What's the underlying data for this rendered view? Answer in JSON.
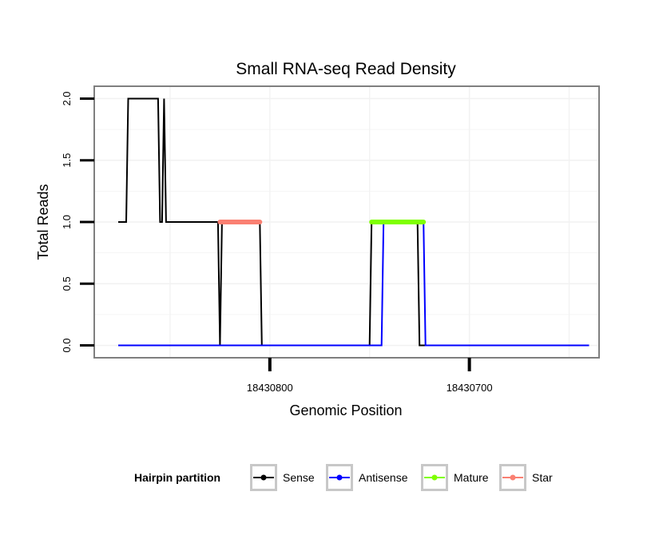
{
  "chart_data": {
    "type": "line",
    "title": "Small RNA-seq Read Density",
    "xlabel": "Genomic Position",
    "ylabel": "Total Reads",
    "x_reversed": true,
    "xlim": [
      18430888,
      18430635
    ],
    "ylim": [
      -0.1,
      2.1
    ],
    "x_ticks": [
      18430800,
      18430700
    ],
    "x_tick_labels": [
      "18430800",
      "18430700"
    ],
    "y_ticks": [
      0,
      0.5,
      1,
      1.5,
      2
    ],
    "y_tick_labels": [
      "0.0",
      "0.5",
      "1.0",
      "1.5",
      "2.0"
    ],
    "grid": true,
    "legend": {
      "title": "Hairpin partition",
      "position": "bottom",
      "entries": [
        {
          "label": "Sense",
          "color": "#000000"
        },
        {
          "label": "Antisense",
          "color": "#0000ff"
        },
        {
          "label": "Mature",
          "color": "#7fff00"
        },
        {
          "label": "Star",
          "color": "#fa8072"
        }
      ]
    },
    "series": [
      {
        "name": "Sense",
        "color": "#000000",
        "x": [
          18430876,
          18430872,
          18430871,
          18430856,
          18430855,
          18430854,
          18430853,
          18430852,
          18430826,
          18430825,
          18430824,
          18430805,
          18430804,
          18430750,
          18430749,
          18430726,
          18430725,
          18430640
        ],
        "y": [
          1,
          1,
          2,
          2,
          1,
          1,
          2,
          1,
          1,
          0,
          1,
          1,
          0,
          0,
          1,
          1,
          0,
          0
        ]
      },
      {
        "name": "Antisense",
        "color": "#0000ff",
        "x": [
          18430876,
          18430744,
          18430743,
          18430723,
          18430722,
          18430640
        ],
        "y": [
          0,
          0,
          1,
          1,
          0,
          0
        ]
      },
      {
        "name": "Mature",
        "color": "#7fff00",
        "x": [
          18430749,
          18430723
        ],
        "y": [
          1,
          1
        ]
      },
      {
        "name": "Star",
        "color": "#fa8072",
        "x": [
          18430825,
          18430805
        ],
        "y": [
          1,
          1
        ]
      }
    ]
  }
}
